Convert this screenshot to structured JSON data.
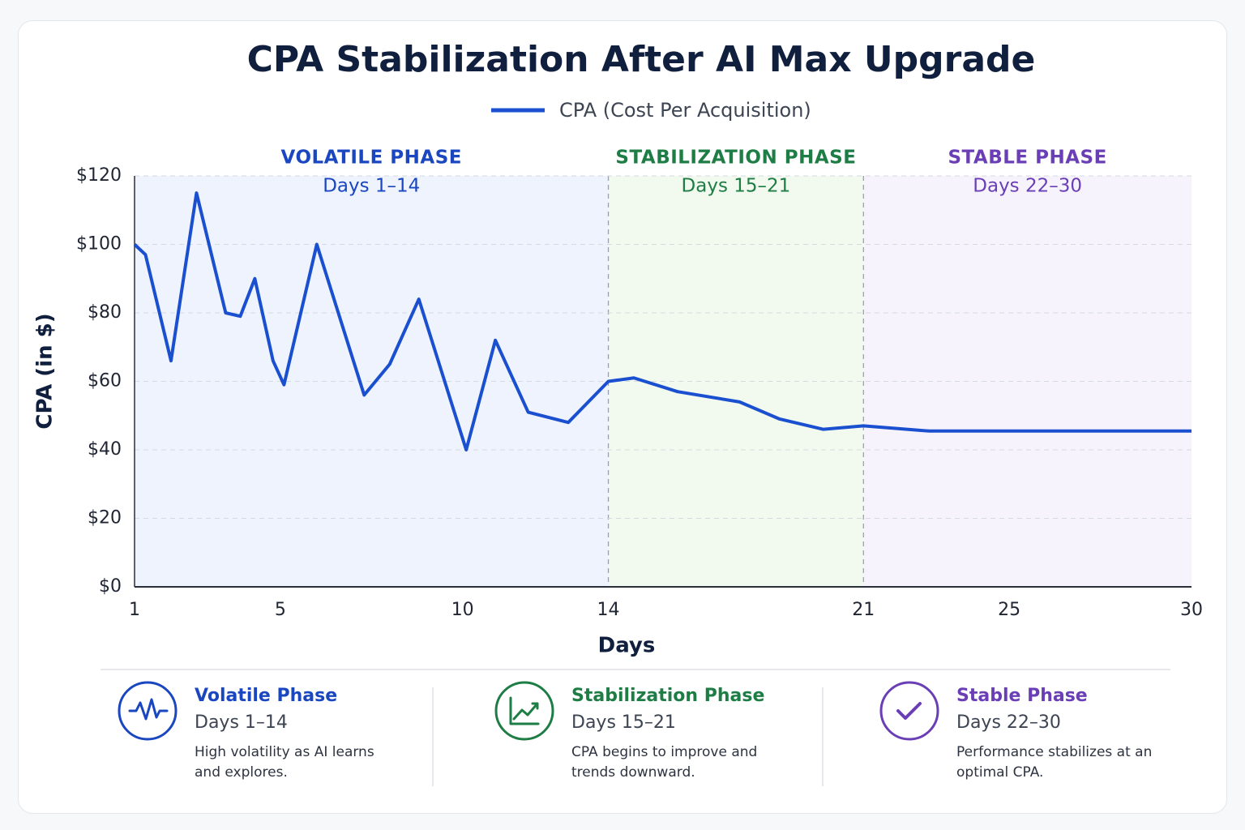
{
  "chart_data": {
    "type": "line",
    "title": "CPA Stabilization After AI Max Upgrade",
    "x_label": "Days",
    "y_label": "CPA (in $)",
    "x": [
      1,
      1.3,
      2.0,
      2.7,
      3.5,
      3.9,
      4.3,
      4.8,
      5.1,
      6.0,
      7.3,
      8.0,
      8.8,
      10.1,
      10.9,
      11.8,
      12.9,
      14,
      14.7,
      15.9,
      17.6,
      18.7,
      19.9,
      21,
      22.8,
      26.3,
      30
    ],
    "series": [
      {
        "name": "CPA (Cost Per Acquisition)",
        "color": "#1a4fd0",
        "values": [
          100,
          97,
          66,
          115,
          80,
          79,
          90,
          66,
          59,
          100,
          56,
          65,
          84,
          40,
          72,
          51,
          48,
          60,
          61,
          57,
          54,
          49,
          46,
          47,
          45.5,
          45.5,
          45.5
        ]
      }
    ],
    "xlim": [
      1,
      30
    ],
    "xticks": [
      1,
      5,
      10,
      14,
      21,
      25,
      30
    ],
    "ylim": [
      0,
      120
    ],
    "yticks": [
      {
        "value": 0,
        "label": "$0"
      },
      {
        "value": 20,
        "label": "$20"
      },
      {
        "value": 40,
        "label": "$40"
      },
      {
        "value": 60,
        "label": "$60"
      },
      {
        "value": 80,
        "label": "$80"
      },
      {
        "value": 100,
        "label": "$100"
      },
      {
        "value": 120,
        "label": "$120"
      }
    ],
    "grid": true,
    "phases": [
      {
        "name": "VOLATILE PHASE",
        "days": "Days 1–14",
        "range": [
          1,
          14
        ],
        "color": "#1a47c0",
        "fill": "#eef3fd"
      },
      {
        "name": "STABILIZATION PHASE",
        "days": "Days 15–21",
        "range": [
          14,
          21
        ],
        "color": "#1e7d45",
        "fill": "#f2faef"
      },
      {
        "name": "STABLE PHASE",
        "days": "Days 22–30",
        "range": [
          21,
          30
        ],
        "color": "#6a3fb5",
        "fill": "#f6f3fc"
      }
    ]
  },
  "cards": [
    {
      "title": "Volatile Phase",
      "days": "Days 1–14",
      "text": "High volatility as AI learns and explores.",
      "color": "#1a47c0"
    },
    {
      "title": "Stabilization Phase",
      "days": "Days 15–21",
      "text": "CPA begins to improve and trends downward.",
      "color": "#1e7d45"
    },
    {
      "title": "Stable Phase",
      "days": "Days 22–30",
      "text": "Performance stabilizes at an optimal CPA.",
      "color": "#6a3fb5"
    }
  ]
}
